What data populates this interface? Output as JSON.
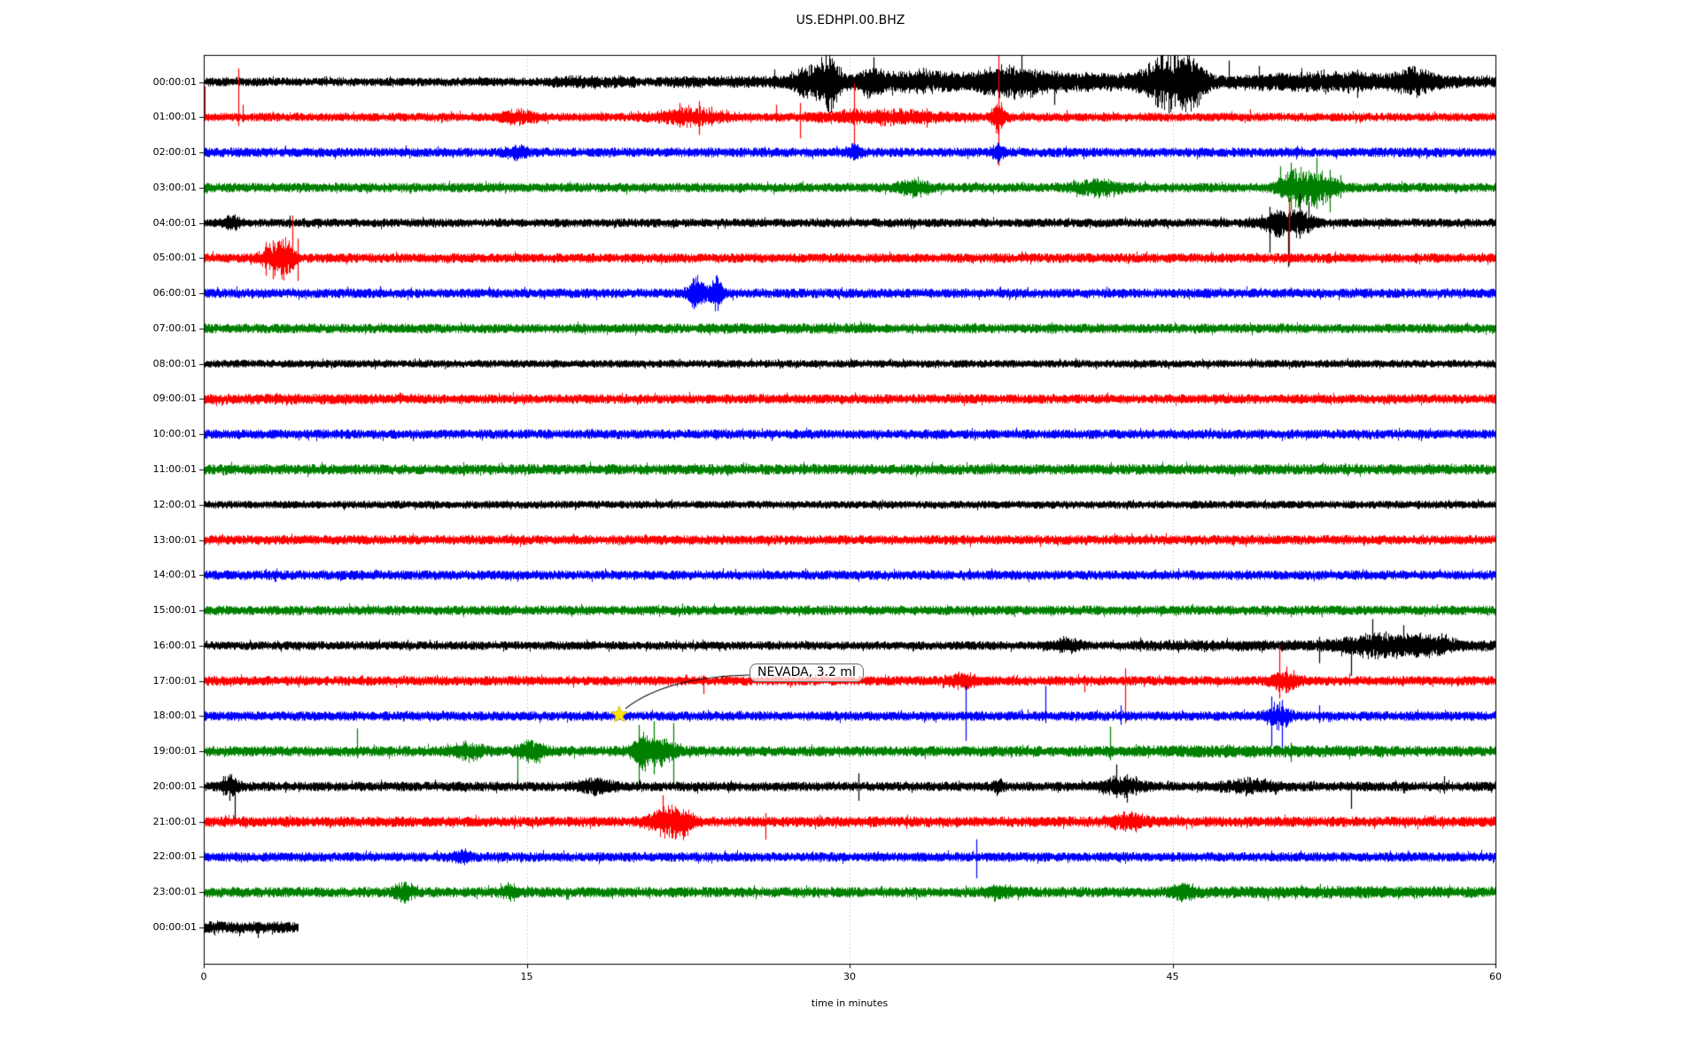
{
  "chart_data": {
    "type": "line",
    "subtype": "seismogram-helicorder-day-plot",
    "title": "US.EDHPI.00.BHZ",
    "xlabel": "time in minutes",
    "xlim": [
      0,
      60
    ],
    "x_ticks": [
      "0",
      "15",
      "30",
      "45",
      "60"
    ],
    "grid_minutes": [
      15,
      30,
      45
    ],
    "grid_color": "#b0b0b0",
    "trace_color_cycle": [
      "#000000",
      "#ff0000",
      "#0000ff",
      "#008000"
    ],
    "annotation": {
      "text": "NEVADA, 3.2 ml",
      "marker": "star-icon",
      "marker_color": "#ffe600",
      "marker_minute": 19.3,
      "marker_row_label": "18:00:01",
      "arrow_color": "#000000"
    },
    "rows": [
      {
        "label": "00:00:01",
        "color": "#000000",
        "base": 4.5,
        "end": 60,
        "ev": {
          "r": [
            [
              16.2,
              20,
              3
            ],
            [
              21,
              60,
              2.5
            ]
          ],
          "b": [
            [
              28.2,
              1.6,
              12
            ],
            [
              29.1,
              0.8,
              20
            ],
            [
              31,
              1,
              8
            ],
            [
              33,
              4,
              7
            ],
            [
              37.3,
              2.6,
              10
            ],
            [
              40.5,
              6,
              5
            ],
            [
              44.8,
              1.8,
              24
            ],
            [
              46,
              1,
              16
            ],
            [
              52,
              6,
              6
            ],
            [
              56.3,
              1.5,
              9
            ]
          ],
          "s": [
            [
              26.5,
              14,
              8
            ],
            [
              28.9,
              30,
              26
            ],
            [
              31.1,
              28,
              12
            ],
            [
              33.4,
              16,
              14
            ],
            [
              38,
              30,
              10
            ],
            [
              39.5,
              12,
              26
            ],
            [
              44.5,
              33,
              20
            ],
            [
              45.1,
              30,
              28
            ],
            [
              47.6,
              24,
              8
            ],
            [
              49,
              18,
              10
            ],
            [
              53.6,
              14,
              18
            ],
            [
              56.2,
              18,
              10
            ]
          ]
        }
      },
      {
        "label": "01:00:01",
        "color": "#ff0000",
        "base": 4.5,
        "end": 60,
        "ev": {
          "b": [
            [
              14.6,
              1.5,
              5
            ],
            [
              22.6,
              2.5,
              7
            ],
            [
              31.5,
              5,
              5
            ],
            [
              36.9,
              0.5,
              14
            ]
          ],
          "s": [
            [
              0.06,
              35,
              4
            ],
            [
              1.6,
              55,
              10
            ],
            [
              1.8,
              14,
              6
            ],
            [
              22.1,
              16,
              12
            ],
            [
              23,
              18,
              20
            ],
            [
              23.6,
              12,
              10
            ],
            [
              26.6,
              14,
              6
            ],
            [
              27.7,
              16,
              24
            ],
            [
              30.2,
              38,
              34
            ],
            [
              33.6,
              10,
              12
            ],
            [
              36.9,
              72,
              55
            ],
            [
              40.1,
              8,
              6
            ],
            [
              48.6,
              9,
              5
            ]
          ]
        }
      },
      {
        "label": "02:00:01",
        "color": "#0000ff",
        "base": 5,
        "end": 60,
        "ev": {
          "b": [
            [
              14.5,
              0.8,
              5
            ],
            [
              30.2,
              0.5,
              6
            ],
            [
              36.9,
              0.5,
              6
            ]
          ],
          "s": [
            [
              30.2,
              9,
              9
            ],
            [
              36.9,
              10,
              9
            ]
          ]
        }
      },
      {
        "label": "03:00:01",
        "color": "#008000",
        "base": 5,
        "end": 60,
        "ev": {
          "b": [
            [
              33,
              1.2,
              7
            ],
            [
              41.5,
              2,
              6
            ],
            [
              50.6,
              1.2,
              13
            ],
            [
              51.8,
              1.4,
              13
            ]
          ],
          "s": [
            [
              50,
              24,
              10
            ],
            [
              50.5,
              28,
              26
            ],
            [
              51.2,
              18,
              20
            ],
            [
              51.7,
              34,
              24
            ],
            [
              52.3,
              20,
              28
            ],
            [
              52.8,
              14,
              12
            ]
          ]
        }
      },
      {
        "label": "04:00:01",
        "color": "#000000",
        "base": 4.5,
        "end": 60,
        "ev": {
          "b": [
            [
              1.3,
              0.6,
              5
            ],
            [
              50,
              1.5,
              10
            ],
            [
              51,
              1,
              8
            ]
          ],
          "s": [
            [
              4,
              8,
              6
            ],
            [
              49.5,
              18,
              34
            ],
            [
              50,
              14,
              12
            ],
            [
              50.35,
              8,
              50
            ],
            [
              50.9,
              33,
              18
            ],
            [
              51.3,
              24,
              12
            ]
          ]
        }
      },
      {
        "label": "05:00:01",
        "color": "#ff0000",
        "base": 5,
        "end": 60,
        "ev": {
          "b": [
            [
              3.4,
              1.1,
              13
            ],
            [
              3.9,
              0.5,
              10
            ]
          ],
          "s": [
            [
              2.9,
              18,
              20
            ],
            [
              3.2,
              20,
              24
            ],
            [
              3.5,
              16,
              12
            ],
            [
              4.1,
              48,
              10
            ],
            [
              4.35,
              22,
              26
            ],
            [
              50.4,
              68,
              8
            ]
          ]
        }
      },
      {
        "label": "06:00:01",
        "color": "#0000ff",
        "base": 5,
        "end": 60,
        "ev": {
          "b": [
            [
              22.8,
              0.5,
              11
            ],
            [
              23.3,
              1.3,
              6
            ],
            [
              23.8,
              0.45,
              11
            ]
          ],
          "s": [
            [
              8.2,
              8,
              5
            ],
            [
              22.75,
              16,
              18
            ],
            [
              23.85,
              17,
              20
            ]
          ]
        }
      },
      {
        "label": "07:00:01",
        "color": "#008000",
        "base": 5,
        "end": 60,
        "ev": {
          "r": [
            [
              23,
              31,
              1
            ]
          ]
        }
      },
      {
        "label": "08:00:01",
        "color": "#000000",
        "base": 4,
        "end": 60,
        "ev": {}
      },
      {
        "label": "09:00:01",
        "color": "#ff0000",
        "base": 5,
        "end": 60,
        "ev": {
          "r": [
            [
              0,
              10,
              1
            ]
          ]
        }
      },
      {
        "label": "10:00:01",
        "color": "#0000ff",
        "base": 5,
        "end": 60,
        "ev": {}
      },
      {
        "label": "11:00:01",
        "color": "#008000",
        "base": 5.5,
        "end": 60,
        "ev": {}
      },
      {
        "label": "12:00:01",
        "color": "#000000",
        "base": 4,
        "end": 60,
        "ev": {}
      },
      {
        "label": "13:00:01",
        "color": "#ff0000",
        "base": 5,
        "end": 60,
        "ev": {}
      },
      {
        "label": "14:00:01",
        "color": "#0000ff",
        "base": 5,
        "end": 60,
        "ev": {}
      },
      {
        "label": "15:00:01",
        "color": "#008000",
        "base": 5,
        "end": 60,
        "ev": {}
      },
      {
        "label": "16:00:01",
        "color": "#000000",
        "base": 4.5,
        "end": 60,
        "ev": {
          "r": [
            [
              43,
              60,
              2
            ]
          ],
          "b": [
            [
              40,
              1.2,
              5
            ],
            [
              54.5,
              3,
              8
            ],
            [
              56.8,
              2,
              7
            ]
          ],
          "s": [
            [
              43.5,
              9,
              7
            ],
            [
              51.8,
              10,
              20
            ],
            [
              53.3,
              8,
              34
            ],
            [
              54.3,
              30,
              12
            ],
            [
              54.9,
              16,
              14
            ],
            [
              55.7,
              23,
              10
            ],
            [
              56.3,
              12,
              14
            ],
            [
              57.5,
              14,
              10
            ]
          ]
        }
      },
      {
        "label": "17:00:01",
        "color": "#ff0000",
        "base": 5,
        "end": 60,
        "ev": {
          "b": [
            [
              35.3,
              1.2,
              5
            ],
            [
              50.2,
              1,
              8
            ]
          ],
          "s": [
            [
              23.2,
              6,
              15
            ],
            [
              35.2,
              9,
              8
            ],
            [
              40.9,
              6,
              13
            ],
            [
              42.8,
              14,
              48
            ],
            [
              49.95,
              40,
              20
            ],
            [
              50.3,
              16,
              14
            ],
            [
              50.6,
              12,
              10
            ],
            [
              53.2,
              8,
              6
            ]
          ]
        }
      },
      {
        "label": "18:00:01",
        "color": "#0000ff",
        "base": 5,
        "end": 60,
        "ev": {
          "b": [
            [
              49.9,
              0.9,
              10
            ]
          ],
          "s": [
            [
              35.4,
              34,
              28
            ],
            [
              39.1,
              34,
              8
            ],
            [
              42.6,
              12,
              10
            ],
            [
              49.6,
              22,
              34
            ],
            [
              50.1,
              18,
              38
            ],
            [
              51.8,
              12,
              8
            ]
          ]
        }
      },
      {
        "label": "19:00:01",
        "color": "#008000",
        "base": 5.5,
        "end": 60,
        "ev": {
          "b": [
            [
              12.3,
              1.2,
              6
            ],
            [
              15.2,
              1,
              8
            ],
            [
              20.3,
              0.5,
              10
            ],
            [
              21,
              1.6,
              11
            ],
            [
              48,
              10,
              1.5
            ]
          ],
          "s": [
            [
              7.1,
              26,
              8
            ],
            [
              14.55,
              8,
              34
            ],
            [
              20.2,
              30,
              38
            ],
            [
              20.9,
              34,
              26
            ],
            [
              21.8,
              32,
              36
            ],
            [
              42.1,
              28,
              10
            ],
            [
              50.5,
              10,
              12
            ]
          ]
        }
      },
      {
        "label": "20:00:01",
        "color": "#000000",
        "base": 5,
        "end": 60,
        "ev": {
          "b": [
            [
              1.2,
              0.6,
              8
            ],
            [
              18.2,
              1.4,
              5.5
            ],
            [
              36.9,
              0.4,
              5
            ],
            [
              42.6,
              1.6,
              7
            ],
            [
              48.5,
              2,
              5
            ]
          ],
          "s": [
            [
              0.9,
              12,
              10
            ],
            [
              1.2,
              14,
              16
            ],
            [
              1.45,
              8,
              40
            ],
            [
              18,
              10,
              8
            ],
            [
              30.4,
              15,
              16
            ],
            [
              42.4,
              25,
              12
            ],
            [
              42.9,
              14,
              18
            ],
            [
              43.3,
              12,
              10
            ],
            [
              53.3,
              6,
              25
            ],
            [
              57.6,
              12,
              8
            ]
          ]
        }
      },
      {
        "label": "21:00:01",
        "color": "#ff0000",
        "base": 5.5,
        "end": 60,
        "ev": {
          "b": [
            [
              21.5,
              1.4,
              12
            ],
            [
              22.3,
              0.7,
              8
            ],
            [
              43,
              1.4,
              6
            ]
          ],
          "s": [
            [
              21.3,
              30,
              12
            ],
            [
              21.9,
              16,
              20
            ],
            [
              26.1,
              10,
              20
            ],
            [
              42.7,
              12,
              10
            ],
            [
              43.3,
              10,
              12
            ]
          ]
        }
      },
      {
        "label": "22:00:01",
        "color": "#0000ff",
        "base": 5,
        "end": 60,
        "ev": {
          "b": [
            [
              12,
              0.8,
              4
            ]
          ],
          "s": [
            [
              35.9,
              20,
              24
            ]
          ]
        }
      },
      {
        "label": "23:00:01",
        "color": "#008000",
        "base": 5.5,
        "end": 60,
        "ev": {
          "b": [
            [
              9.3,
              0.7,
              8
            ],
            [
              14.2,
              0.6,
              6
            ],
            [
              37,
              1,
              5
            ],
            [
              45.5,
              1,
              5
            ],
            [
              52,
              12,
              1.5
            ]
          ],
          "s": [
            [
              9.3,
              12,
              12
            ]
          ]
        }
      },
      {
        "label": "00:00:01",
        "color": "#000000",
        "base": 6.5,
        "end": 4.35,
        "ev": {
          "s": [
            [
              2.5,
              6,
              12
            ]
          ]
        }
      }
    ]
  }
}
